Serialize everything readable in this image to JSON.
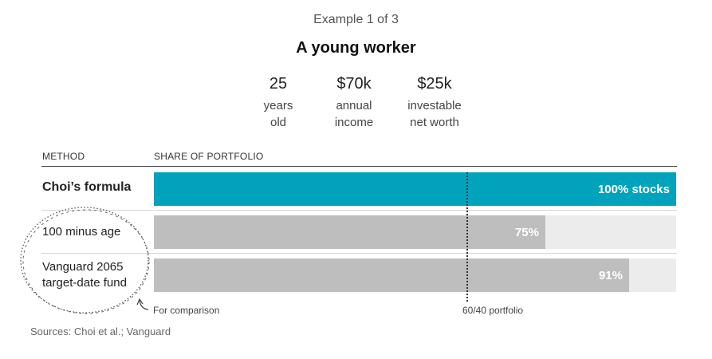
{
  "header": {
    "example_label": "Example 1 of 3",
    "title": "A young worker"
  },
  "stats": [
    {
      "value": "25",
      "label_line1": "years",
      "label_line2": "old"
    },
    {
      "value": "$70k",
      "label_line1": "annual",
      "label_line2": "income"
    },
    {
      "value": "$25k",
      "label_line1": "investable",
      "label_line2": "net worth"
    }
  ],
  "columns": {
    "method": "METHOD",
    "share": "SHARE OF PORTFOLIO"
  },
  "chart_data": {
    "type": "bar",
    "orientation": "horizontal",
    "categories": [
      "Choi’s formula",
      "100 minus age",
      "Vanguard 2065 target-date fund"
    ],
    "values": [
      100,
      75,
      91
    ],
    "value_labels": [
      "100% stocks",
      "75%",
      "91%"
    ],
    "xlim": [
      0,
      100
    ],
    "bar_colors": [
      "#00a3bb",
      "#bebebe",
      "#bebebe"
    ],
    "track_color": "#ececec",
    "reference_line": {
      "value": 60,
      "label": "60/40 portfolio"
    },
    "annotation": "For comparison",
    "source": "Sources: Choi et al.; Vanguard"
  },
  "methods": [
    {
      "line1": "Choi’s formula",
      "line2": ""
    },
    {
      "line1": "100 minus age",
      "line2": ""
    },
    {
      "line1": "Vanguard 2065",
      "line2": "target-date fund"
    }
  ]
}
